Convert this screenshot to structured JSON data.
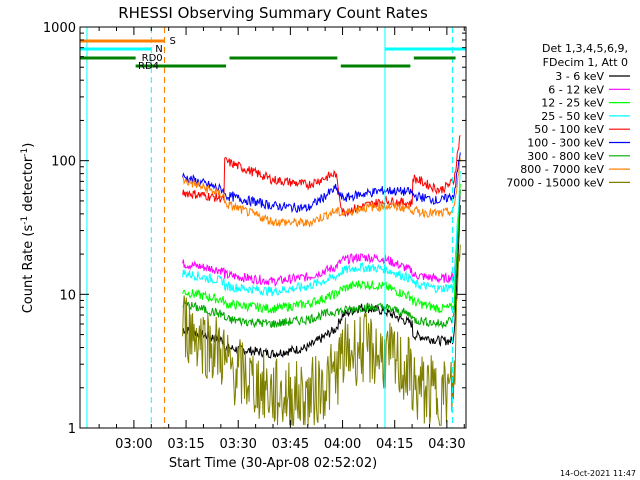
{
  "chart_data": {
    "type": "line",
    "title": "RHESSI Observing Summary Count Rates",
    "xlabel": "Start Time (30-Apr-08 02:52:02)",
    "ylabel_prefix": "Count Rate (s",
    "ylabel_sup": "-1",
    "ylabel_mid": " detector",
    "ylabel_sup2": "-1",
    "ylabel_suffix": ")",
    "yscale": "log",
    "ylim": [
      1,
      1000
    ],
    "xlim_minutes": [
      -15.5,
      95.5
    ],
    "x_ticks": [
      {
        "label": "03:00",
        "minute": 0
      },
      {
        "label": "03:15",
        "minute": 15
      },
      {
        "label": "03:30",
        "minute": 30
      },
      {
        "label": "03:45",
        "minute": 45
      },
      {
        "label": "04:00",
        "minute": 60
      },
      {
        "label": "04:15",
        "minute": 75
      },
      {
        "label": "04:30",
        "minute": 90
      }
    ],
    "y_ticks": [
      {
        "label": "1",
        "value": 1
      },
      {
        "label": "10",
        "value": 10
      },
      {
        "label": "100",
        "value": 100
      },
      {
        "label": "1000",
        "value": 1000
      }
    ],
    "legend_header": [
      "Det 1,3,4,5,6,9,",
      "FDecim 1, Att 0"
    ],
    "series": [
      {
        "name": "3 - 6 keV",
        "color": "#000000",
        "t": [
          14,
          26,
          26,
          40,
          50,
          58,
          60,
          65,
          72,
          80,
          80,
          88,
          92,
          94
        ],
        "values": [
          5.5,
          4.5,
          4.0,
          3.6,
          4.0,
          5.5,
          7.0,
          8.0,
          7.5,
          6.0,
          5.0,
          4.5,
          4.5,
          55
        ]
      },
      {
        "name": "6 - 12 keV",
        "color": "#ff00ff",
        "t": [
          14,
          26,
          26,
          40,
          50,
          58,
          60,
          65,
          72,
          80,
          80,
          88,
          92,
          94
        ],
        "values": [
          17,
          15,
          14,
          12.5,
          13.5,
          16,
          18,
          19,
          18.5,
          15,
          14,
          13,
          13.5,
          60
        ]
      },
      {
        "name": "12 - 25 keV",
        "color": "#00ff00",
        "t": [
          14,
          26,
          26,
          40,
          50,
          58,
          60,
          65,
          72,
          80,
          80,
          88,
          92,
          94
        ],
        "values": [
          10.5,
          9.0,
          8.5,
          7.8,
          8.5,
          10,
          11,
          12,
          11.5,
          9.5,
          8.8,
          7.8,
          8.0,
          80
        ]
      },
      {
        "name": "25 - 50 keV",
        "color": "#00ffff",
        "t": [
          14,
          26,
          26,
          40,
          50,
          58,
          60,
          65,
          72,
          80,
          80,
          88,
          92,
          94
        ],
        "values": [
          14.5,
          12.5,
          11.5,
          10.5,
          11.5,
          13.5,
          15,
          16,
          15.5,
          13,
          12,
          11,
          11.5,
          90
        ]
      },
      {
        "name": "50 - 100 keV",
        "color": "#ff0000",
        "t": [
          14,
          26,
          26,
          40,
          50,
          58,
          60,
          65,
          72,
          80,
          80,
          88,
          92,
          94
        ],
        "values": [
          58,
          52,
          100,
          72,
          66,
          80,
          41,
          45,
          50,
          48,
          75,
          60,
          70,
          170
        ]
      },
      {
        "name": "100 - 300 keV",
        "color": "#0000ff",
        "t": [
          14,
          26,
          26,
          40,
          50,
          58,
          60,
          65,
          72,
          80,
          80,
          88,
          92,
          94
        ],
        "values": [
          76,
          60,
          55,
          46,
          44,
          62,
          52,
          56,
          60,
          58,
          55,
          50,
          55,
          120
        ]
      },
      {
        "name": "300 - 800 keV",
        "color": "#00aa00",
        "t": [
          14,
          26,
          26,
          40,
          50,
          58,
          60,
          65,
          72,
          80,
          80,
          88,
          92,
          94
        ],
        "values": [
          8.5,
          7.0,
          6.5,
          6.0,
          6.5,
          7.5,
          7.5,
          8.0,
          8.0,
          7.0,
          6.5,
          6.0,
          6.5,
          70
        ]
      },
      {
        "name": "800 - 7000 keV",
        "color": "#ff8000",
        "t": [
          14,
          26,
          26,
          40,
          50,
          58,
          60,
          65,
          72,
          80,
          80,
          88,
          92,
          94
        ],
        "values": [
          72,
          55,
          48,
          35,
          34,
          42,
          40,
          44,
          46,
          44,
          42,
          40,
          42,
          110
        ]
      },
      {
        "name": "7000 - 15000 keV",
        "color": "#808000",
        "t": [
          14,
          26,
          26,
          40,
          50,
          58,
          60,
          65,
          72,
          80,
          80,
          88,
          92,
          94
        ],
        "values": [
          6.0,
          3.5,
          3.0,
          1.8,
          1.7,
          2.5,
          3.5,
          4.0,
          3.5,
          2.5,
          2.0,
          1.8,
          1.9,
          45
        ]
      }
    ],
    "vlines": [
      {
        "minute": -13.5,
        "style": "solid",
        "color": "#00ffff"
      },
      {
        "minute": 5.0,
        "style": "dashed",
        "color": "#00ffff"
      },
      {
        "minute": 8.8,
        "style": "dashed",
        "color": "#ff8000"
      },
      {
        "minute": 72.2,
        "style": "solid",
        "color": "#00ffff"
      },
      {
        "minute": 91.6,
        "style": "dashed",
        "color": "#00ffff"
      }
    ],
    "flag_bars": [
      {
        "label": "S",
        "color": "#ff8000",
        "segments": [
          [
            -15.5,
            8.8
          ]
        ]
      },
      {
        "label": "N",
        "color": "#00ffff",
        "segments": [
          [
            -15.5,
            5.0
          ],
          [
            72.2,
            95.5
          ]
        ]
      },
      {
        "label": "RD0",
        "color": "#008000",
        "segments": [
          [
            -15.5,
            0.5
          ],
          [
            0.5,
            26.5
          ],
          [
            27.5,
            58.5
          ],
          [
            59.5,
            79.5
          ],
          [
            80.5,
            92.5
          ]
        ]
      }
    ],
    "rd4_label": "RD4",
    "timestamp": "14-Oct-2021 11:47"
  }
}
